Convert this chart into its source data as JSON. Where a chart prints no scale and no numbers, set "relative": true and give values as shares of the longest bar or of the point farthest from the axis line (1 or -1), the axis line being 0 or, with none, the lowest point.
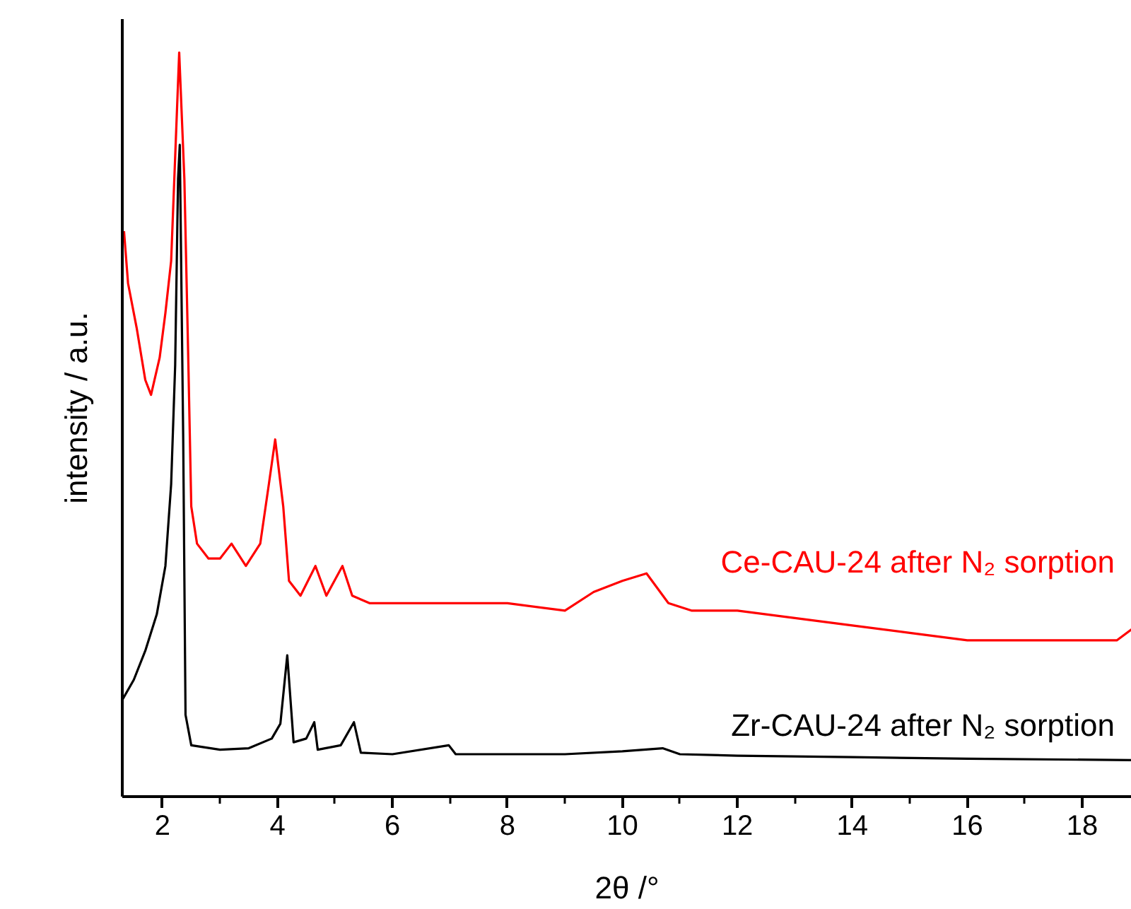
{
  "chart_data": {
    "type": "line",
    "relative": true,
    "xlabel": "2θ /°",
    "ylabel": "intensity / a.u.",
    "xlim": [
      1.3,
      18.86
    ],
    "xticks": [
      2,
      4,
      6,
      8,
      10,
      12,
      14,
      16,
      18
    ],
    "grid": false,
    "marker": "none",
    "line_style": "solid",
    "series": [
      {
        "name": "Ce-CAU-24 after N₂ sorption",
        "color": "#ff0000",
        "x": [
          1.33,
          1.4,
          1.55,
          1.7,
          1.8,
          1.95,
          2.05,
          2.15,
          2.29,
          2.38,
          2.45,
          2.5,
          2.6,
          2.8,
          3.0,
          3.2,
          3.45,
          3.7,
          3.85,
          3.96,
          4.1,
          4.2,
          4.4,
          4.66,
          4.85,
          5.13,
          5.3,
          5.6,
          6.0,
          7.0,
          8.0,
          9.0,
          9.5,
          10.0,
          10.42,
          10.8,
          11.2,
          12.0,
          13.0,
          14.0,
          15.0,
          16.0,
          17.0,
          18.0,
          18.6,
          18.86
        ],
        "values": [
          0.76,
          0.69,
          0.63,
          0.56,
          0.54,
          0.59,
          0.65,
          0.72,
          1.0,
          0.83,
          0.58,
          0.39,
          0.34,
          0.32,
          0.32,
          0.34,
          0.31,
          0.34,
          0.42,
          0.48,
          0.39,
          0.29,
          0.27,
          0.31,
          0.27,
          0.31,
          0.27,
          0.26,
          0.26,
          0.26,
          0.26,
          0.25,
          0.275,
          0.29,
          0.3,
          0.26,
          0.25,
          0.25,
          0.24,
          0.23,
          0.22,
          0.21,
          0.21,
          0.21,
          0.21,
          0.225
        ]
      },
      {
        "name": "Zr-CAU-24 after N₂ sorption",
        "color": "#000000",
        "x": [
          1.3,
          1.5,
          1.7,
          1.9,
          2.05,
          2.15,
          2.22,
          2.27,
          2.3,
          2.36,
          2.4,
          2.5,
          3.0,
          3.5,
          3.9,
          4.05,
          4.17,
          4.28,
          4.5,
          4.64,
          4.7,
          5.1,
          5.33,
          5.45,
          6.0,
          6.98,
          7.1,
          8.0,
          9.0,
          10.0,
          10.7,
          11.0,
          12.0,
          14.0,
          16.0,
          18.86
        ],
        "values": [
          0.13,
          0.157,
          0.196,
          0.245,
          0.31,
          0.42,
          0.58,
          0.83,
          0.876,
          0.48,
          0.11,
          0.069,
          0.063,
          0.065,
          0.078,
          0.098,
          0.19,
          0.073,
          0.078,
          0.1,
          0.063,
          0.069,
          0.1,
          0.059,
          0.057,
          0.069,
          0.057,
          0.057,
          0.057,
          0.061,
          0.065,
          0.057,
          0.055,
          0.053,
          0.051,
          0.049
        ]
      }
    ]
  }
}
